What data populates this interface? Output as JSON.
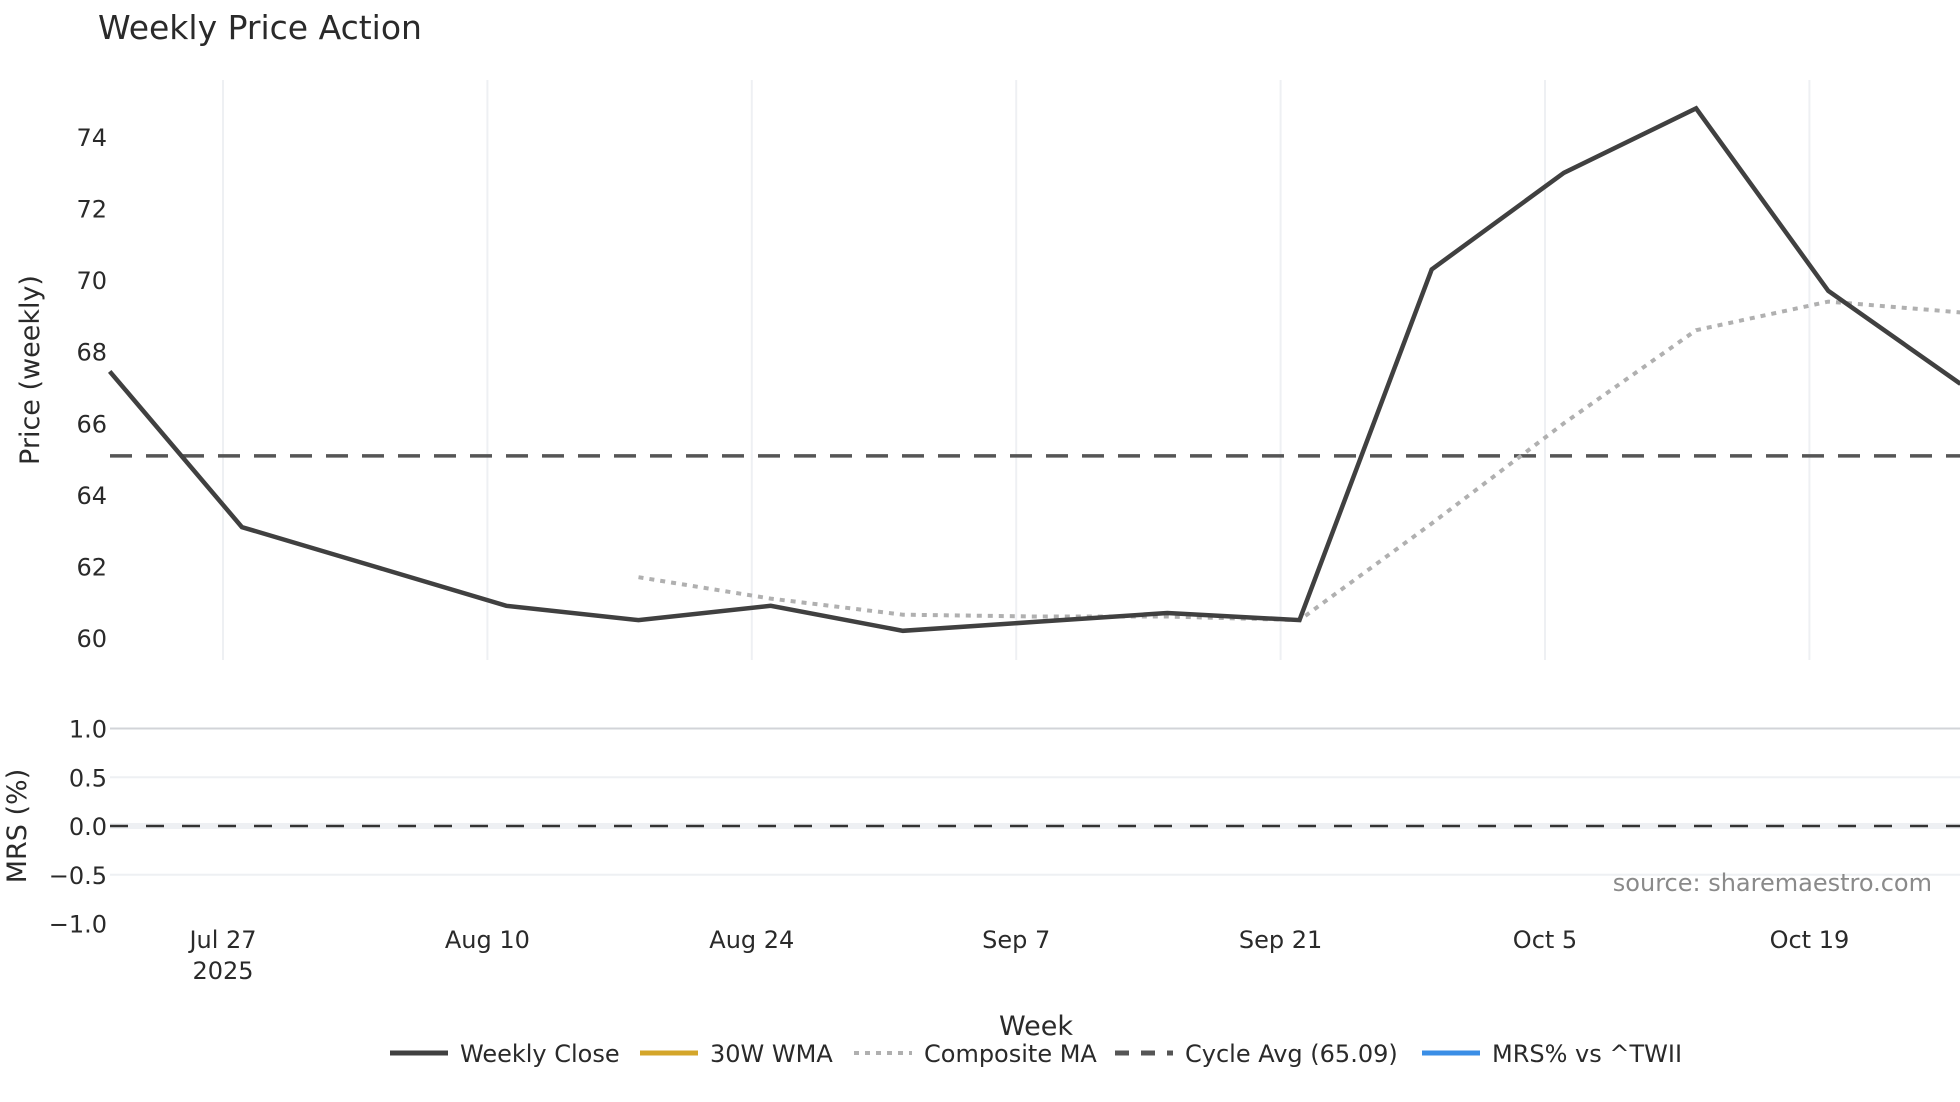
{
  "title": "Weekly Price Action",
  "source_label": "source: sharemaestro.com",
  "colors": {
    "weekly_close": "#404040",
    "wma30": "#d4a62a",
    "composite_ma": "#b0b0b0",
    "cycle_avg": "#555555",
    "mrs": "#3a8ee6",
    "grid": "#eef0f3",
    "zero_line": "#333333"
  },
  "legend": [
    {
      "key": "weekly_close",
      "label": "Weekly Close",
      "style": "solid"
    },
    {
      "key": "wma30",
      "label": "30W WMA",
      "style": "solid"
    },
    {
      "key": "composite_ma",
      "label": "Composite MA",
      "style": "dot"
    },
    {
      "key": "cycle_avg",
      "label": "Cycle Avg (65.09)",
      "style": "dash"
    },
    {
      "key": "mrs",
      "label": "MRS% vs ^TWII",
      "style": "solid"
    }
  ],
  "chart_data": [
    {
      "type": "line",
      "title": "Weekly Price Action",
      "xlabel": "Week",
      "ylabel": "Price (weekly)",
      "ylim": [
        59.5,
        75.6
      ],
      "yticks": [
        60,
        62,
        64,
        66,
        68,
        70,
        72,
        74
      ],
      "xticks": [
        "Jul 27\n2025",
        "Aug 10",
        "Aug 24",
        "Sep 7",
        "Sep 21",
        "Oct 5",
        "Oct 19"
      ],
      "grid": true,
      "legend_position": "bottom",
      "x": [
        "2025-07-21",
        "2025-07-28",
        "2025-08-04",
        "2025-08-11",
        "2025-08-18",
        "2025-08-25",
        "2025-09-01",
        "2025-09-08",
        "2025-09-15",
        "2025-09-22",
        "2025-09-29",
        "2025-10-06",
        "2025-10-13",
        "2025-10-20",
        "2025-10-27"
      ],
      "series": [
        {
          "name": "Weekly Close",
          "values": [
            67.45,
            63.1,
            62.0,
            60.9,
            60.5,
            60.9,
            60.2,
            60.45,
            60.7,
            60.5,
            70.3,
            73.0,
            74.8,
            69.7,
            67.1
          ]
        },
        {
          "name": "30W WMA",
          "values": [
            null,
            null,
            null,
            null,
            null,
            null,
            null,
            null,
            null,
            null,
            null,
            null,
            null,
            null,
            null
          ]
        },
        {
          "name": "Composite MA",
          "values": [
            null,
            null,
            null,
            null,
            61.7,
            61.1,
            60.65,
            60.6,
            60.6,
            60.5,
            63.2,
            66.0,
            68.6,
            69.4,
            69.1
          ]
        },
        {
          "name": "Cycle Avg (65.09)",
          "values": [
            65.09,
            65.09,
            65.09,
            65.09,
            65.09,
            65.09,
            65.09,
            65.09,
            65.09,
            65.09,
            65.09,
            65.09,
            65.09,
            65.09,
            65.09
          ]
        }
      ]
    },
    {
      "type": "line",
      "title": "",
      "xlabel": "Week",
      "ylabel": "MRS (%)",
      "ylim": [
        -1.0,
        1.0
      ],
      "yticks": [
        "1.0",
        "0.5",
        "0.0",
        "−0.5",
        "−1.0"
      ],
      "grid": true,
      "series": [
        {
          "name": "MRS% vs ^TWII",
          "values": []
        },
        {
          "name": "Zero line",
          "values": [
            0,
            0
          ]
        }
      ]
    }
  ]
}
